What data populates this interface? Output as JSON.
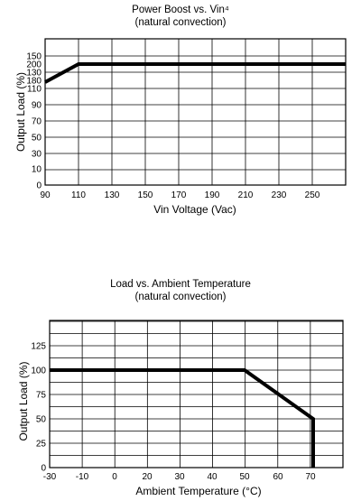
{
  "chart_data": [
    {
      "type": "line",
      "title": "Power Boost vs. Vin⁴",
      "subtitle": "(natural convection)",
      "xlabel": "Vin Voltage (Vac)",
      "ylabel": "Output Load (%)",
      "x_ticks": [
        "90",
        "110",
        "130",
        "150",
        "170",
        "190",
        "210",
        "230",
        "250"
      ],
      "y_ticks": [
        "0",
        "10",
        "30",
        "50",
        "70",
        "90",
        "110",
        "130",
        "150",
        "180",
        "200"
      ],
      "xlim": [
        90,
        275
      ],
      "grid": true,
      "series": [
        {
          "x": [
            90,
            110,
            275
          ],
          "y": [
            180,
            200,
            200
          ]
        }
      ]
    },
    {
      "type": "line",
      "title": "Load vs. Ambient Temperature",
      "subtitle": "(natural convection)",
      "xlabel": "Ambient Temperature (°C)",
      "ylabel": "Output Load (%)",
      "x_ticks": [
        "-30",
        "-10",
        "0",
        "20",
        "30",
        "40",
        "50",
        "60",
        "70"
      ],
      "y_ticks": [
        "0",
        "25",
        "50",
        "75",
        "100",
        "125"
      ],
      "xlim": [
        -30,
        80
      ],
      "ylim": [
        0,
        150
      ],
      "grid": true,
      "series": [
        {
          "x": [
            -30,
            50,
            70,
            70
          ],
          "y": [
            100,
            100,
            50,
            0
          ]
        }
      ]
    }
  ]
}
